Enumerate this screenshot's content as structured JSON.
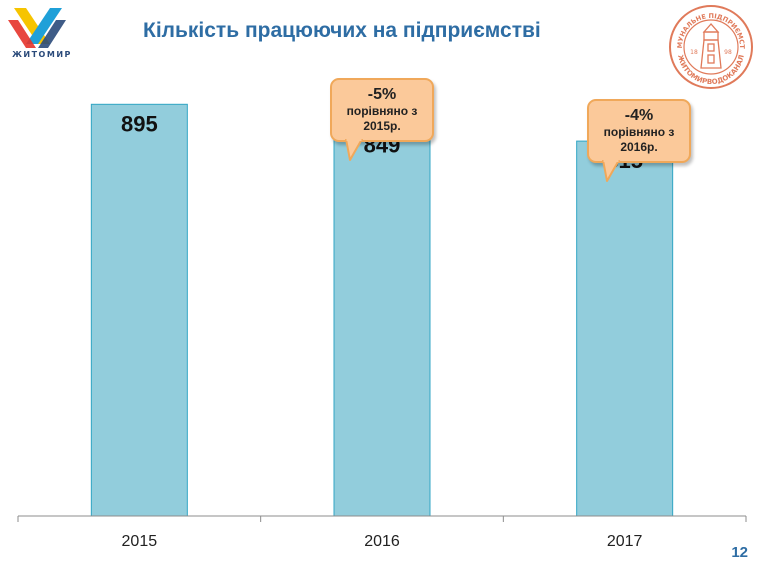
{
  "header": {
    "title": "Кількість працюючих на підприємстві",
    "logo_left_text": "ЖИТОМИР",
    "seal_text_top": "КОМУНАЛЬНЕ ПІДПРИЄМСТВО",
    "seal_text_bottom": "ЖИТОМИРВОДОКАНАЛ",
    "seal_year_left": "18",
    "seal_year_right": "98"
  },
  "callouts": [
    {
      "percent": "-5%",
      "line1": "порівняно з",
      "line2": "2015р."
    },
    {
      "percent": "-4%",
      "line1": "порівняно з",
      "line2": "2016р."
    }
  ],
  "page_number": "12",
  "colors": {
    "bar_fill": "#92cddc",
    "bar_stroke": "#31a5c4",
    "title": "#2e6da4",
    "callout_fill": "#fbc99a",
    "callout_border": "#f0a85a"
  },
  "chart_data": {
    "type": "bar",
    "categories": [
      "2015",
      "2016",
      "2017"
    ],
    "values": [
      895,
      849,
      815
    ],
    "data_labels": [
      "895",
      "849",
      "815"
    ],
    "title": "Кількість працюючих на підприємстві",
    "xlabel": "",
    "ylabel": "",
    "ylim": [
      0,
      1000
    ],
    "grid": false,
    "legend": "none"
  }
}
